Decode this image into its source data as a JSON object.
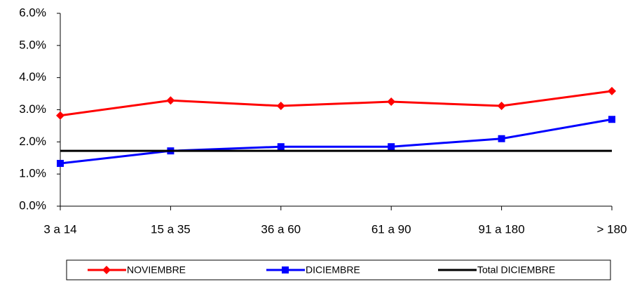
{
  "chart_data": {
    "type": "line",
    "categories": [
      "3 a 14",
      "15 a 35",
      "36 a 60",
      "61 a 90",
      "91 a 180",
      "> 180"
    ],
    "series": [
      {
        "name": "NOVIEMBRE",
        "color": "#ff0000",
        "marker": "diamond",
        "values": [
          2.82,
          3.29,
          3.12,
          3.25,
          3.12,
          3.58
        ]
      },
      {
        "name": "DICIEMBRE",
        "color": "#0000ff",
        "marker": "square",
        "values": [
          1.33,
          1.72,
          1.85,
          1.85,
          2.1,
          2.7
        ]
      },
      {
        "name": "Total DICIEMBRE",
        "color": "#000000",
        "marker": "none",
        "values": [
          1.72,
          1.72,
          1.72,
          1.72,
          1.72,
          1.72
        ]
      }
    ],
    "ylim": [
      0,
      6
    ],
    "yticks": [
      {
        "value": 0,
        "label": "0.0%"
      },
      {
        "value": 1,
        "label": "1.0%"
      },
      {
        "value": 2,
        "label": "2.0%"
      },
      {
        "value": 3,
        "label": "3.0%"
      },
      {
        "value": 4,
        "label": "4.0%"
      },
      {
        "value": 5,
        "label": "5.0%"
      },
      {
        "value": 6,
        "label": "6.0%"
      }
    ],
    "grid": false
  }
}
